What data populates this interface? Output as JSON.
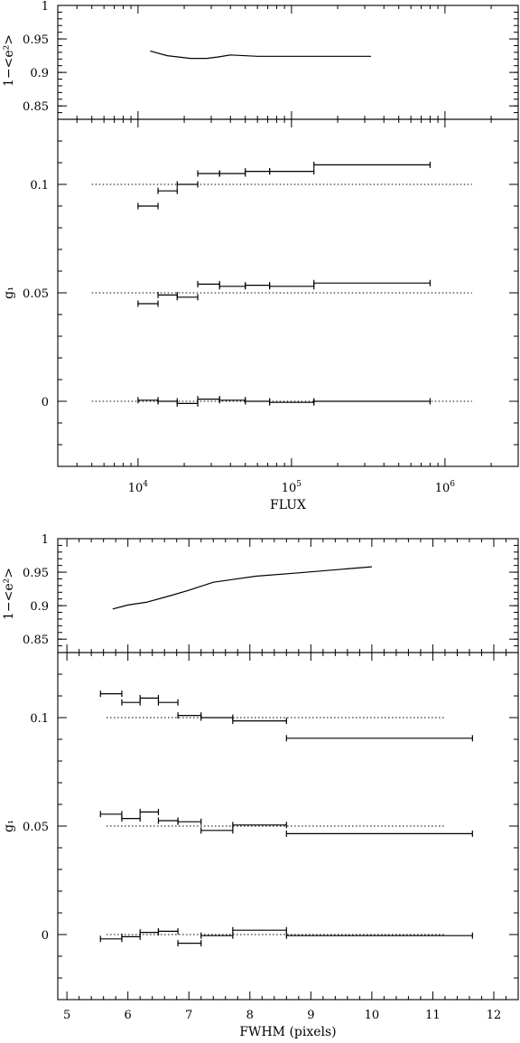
{
  "chart_data": [
    {
      "type": "line",
      "panel": "top",
      "xscale": "log",
      "xlim": [
        3000,
        3000000
      ],
      "xlabel": "FLUX",
      "xticks": [
        10000,
        100000,
        1000000
      ],
      "xtick_labels": [
        {
          "base": "10",
          "exp": "4"
        },
        {
          "base": "10",
          "exp": "5"
        },
        {
          "base": "10",
          "exp": "6"
        }
      ],
      "upper": {
        "ylabel": "1−<e²>",
        "ylim": [
          0.83,
          1.0
        ],
        "yticks": [
          0.85,
          0.9,
          0.95,
          1.0
        ],
        "ytick_labels": [
          "0.85",
          "0.9",
          "0.95",
          "1"
        ],
        "x": [
          12000,
          15500,
          18500,
          22000,
          28000,
          33000,
          40000,
          60000,
          110000,
          330000
        ],
        "y": [
          0.932,
          0.925,
          0.923,
          0.921,
          0.921,
          0.923,
          0.926,
          0.924,
          0.924,
          0.924
        ]
      },
      "lower": {
        "ylabel": "g₁",
        "ylim": [
          -0.03,
          0.13
        ],
        "yticks": [
          0,
          0.05,
          0.1
        ],
        "ytick_labels": [
          "0",
          "0.05",
          "0.1"
        ],
        "references": [
          {
            "value": 0.1,
            "x": [
              5000,
              1500000
            ]
          },
          {
            "value": 0.05,
            "x": [
              5000,
              1500000
            ]
          },
          {
            "value": 0,
            "x": [
              5000,
              1500000
            ]
          }
        ],
        "bins": [
          {
            "x0": 10000,
            "x1": 13500,
            "y": [
              0.09,
              0.045,
              0.0005
            ]
          },
          {
            "x0": 13500,
            "x1": 18000,
            "y": [
              0.097,
              0.049,
              0.0
            ]
          },
          {
            "x0": 18000,
            "x1": 24500,
            "y": [
              0.1,
              0.048,
              -0.001
            ]
          },
          {
            "x0": 24500,
            "x1": 34000,
            "y": [
              0.105,
              0.054,
              0.001
            ]
          },
          {
            "x0": 34000,
            "x1": 50000,
            "y": [
              0.105,
              0.053,
              0.0005
            ]
          },
          {
            "x0": 50000,
            "x1": 72000,
            "y": [
              0.106,
              0.0535,
              0.0
            ]
          },
          {
            "x0": 72000,
            "x1": 140000,
            "y": [
              0.106,
              0.053,
              -0.0005
            ]
          },
          {
            "x0": 140000,
            "x1": 800000,
            "y": [
              0.109,
              0.0545,
              0.0
            ]
          }
        ]
      }
    },
    {
      "type": "line",
      "panel": "bottom",
      "xscale": "linear",
      "xlim": [
        4.85,
        12.4
      ],
      "xlabel": "FWHM (pixels)",
      "xticks": [
        5,
        6,
        7,
        8,
        9,
        10,
        11,
        12
      ],
      "xtick_labels": [
        "5",
        "6",
        "7",
        "8",
        "9",
        "10",
        "11",
        "12"
      ],
      "upper": {
        "ylabel": "1−<e²>",
        "ylim": [
          0.83,
          1.0
        ],
        "yticks": [
          0.85,
          0.9,
          0.95,
          1.0
        ],
        "ytick_labels": [
          "0.85",
          "0.9",
          "0.95",
          "1"
        ],
        "x": [
          5.75,
          6.0,
          6.3,
          6.7,
          7.0,
          7.4,
          8.1,
          8.8,
          10.0
        ],
        "y": [
          0.895,
          0.901,
          0.905,
          0.915,
          0.923,
          0.935,
          0.944,
          0.949,
          0.958
        ]
      },
      "lower": {
        "ylabel": "g₁",
        "ylim": [
          -0.03,
          0.13
        ],
        "yticks": [
          0,
          0.05,
          0.1
        ],
        "ytick_labels": [
          "0",
          "0.05",
          "0.1"
        ],
        "references": [
          {
            "value": 0.1,
            "x": [
              5.65,
              11.2
            ]
          },
          {
            "value": 0.05,
            "x": [
              5.65,
              11.2
            ]
          },
          {
            "value": 0,
            "x": [
              5.65,
              11.2
            ]
          }
        ],
        "bins": [
          {
            "x0": 5.55,
            "x1": 5.9,
            "y": [
              0.111,
              0.0555,
              -0.002
            ]
          },
          {
            "x0": 5.9,
            "x1": 6.2,
            "y": [
              0.107,
              0.0535,
              -0.001
            ]
          },
          {
            "x0": 6.2,
            "x1": 6.5,
            "y": [
              0.109,
              0.0565,
              0.001
            ]
          },
          {
            "x0": 6.5,
            "x1": 6.82,
            "y": [
              0.107,
              0.0525,
              0.0015
            ]
          },
          {
            "x0": 6.82,
            "x1": 7.2,
            "y": [
              0.101,
              0.052,
              -0.004
            ]
          },
          {
            "x0": 7.2,
            "x1": 7.72,
            "y": [
              0.1,
              0.048,
              -0.0005
            ]
          },
          {
            "x0": 7.72,
            "x1": 8.6,
            "y": [
              0.0985,
              0.0505,
              0.002
            ]
          },
          {
            "x0": 8.6,
            "x1": 11.65,
            "y": [
              0.0905,
              0.0465,
              -0.0005
            ]
          }
        ]
      }
    }
  ]
}
